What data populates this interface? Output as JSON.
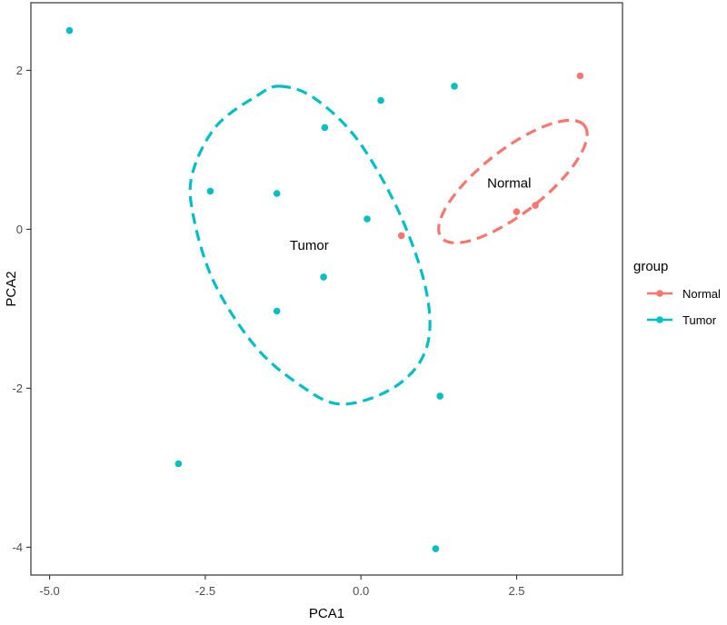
{
  "chart_data": {
    "type": "scatter",
    "title": "",
    "xlabel": "PCA1",
    "ylabel": "PCA2",
    "xlim": [
      -5.3,
      4.2
    ],
    "ylim": [
      -4.35,
      2.85
    ],
    "xticks": [
      -5.0,
      -2.5,
      0.0,
      2.5
    ],
    "xtick_labels": [
      "-5.0",
      "-2.5",
      "0.0",
      "2.5"
    ],
    "yticks": [
      -4,
      -2,
      0,
      2
    ],
    "ytick_labels": [
      "-4",
      "-2",
      "0",
      "2"
    ],
    "grid": false,
    "legend": {
      "title": "group",
      "placement": "right",
      "entries": [
        {
          "label": "Normal",
          "color": "#f8766d"
        },
        {
          "label": "Tumor",
          "color": "#00bfc4"
        }
      ]
    },
    "series": [
      {
        "name": "Normal",
        "color": "#f8766d",
        "points": [
          {
            "x": 0.65,
            "y": -0.08
          },
          {
            "x": 2.5,
            "y": 0.22
          },
          {
            "x": 2.8,
            "y": 0.3
          },
          {
            "x": 3.52,
            "y": 1.93
          }
        ],
        "ellipse": {
          "label": "Normal",
          "label_at": {
            "x": 2.38,
            "y": 0.58
          },
          "outline": [
            {
              "x": 1.18,
              "y": -0.33
            },
            {
              "x": 1.55,
              "y": -0.12
            },
            {
              "x": 2.12,
              "y": 0.32
            },
            {
              "x": 2.78,
              "y": 0.82
            },
            {
              "x": 3.28,
              "y": 1.22
            },
            {
              "x": 3.59,
              "y": 1.43
            },
            {
              "x": 3.73,
              "y": 1.23
            },
            {
              "x": 3.58,
              "y": 0.7
            },
            {
              "x": 3.1,
              "y": 0.38
            },
            {
              "x": 2.38,
              "y": 0.08
            },
            {
              "x": 1.55,
              "y": -0.22
            },
            {
              "x": 1.1,
              "y": -0.3
            },
            {
              "x": 1.13,
              "y": 0.15
            },
            {
              "x": 1.68,
              "y": 0.73
            },
            {
              "x": 2.35,
              "y": 1.23
            },
            {
              "x": 3.08,
              "y": 1.5
            },
            {
              "x": 3.5,
              "y": 1.5
            }
          ]
        }
      },
      {
        "name": "Tumor",
        "color": "#00bfc4",
        "points": [
          {
            "x": -4.68,
            "y": 2.5
          },
          {
            "x": -2.93,
            "y": -2.95
          },
          {
            "x": -2.42,
            "y": 0.48
          },
          {
            "x": -1.35,
            "y": 0.45
          },
          {
            "x": -1.35,
            "y": -1.03
          },
          {
            "x": -0.58,
            "y": 1.28
          },
          {
            "x": -0.6,
            "y": -0.6
          },
          {
            "x": 0.1,
            "y": 0.13
          },
          {
            "x": 0.32,
            "y": 1.62
          },
          {
            "x": 1.5,
            "y": 1.8
          },
          {
            "x": 1.27,
            "y": -2.1
          },
          {
            "x": 1.2,
            "y": -4.02
          }
        ],
        "ellipse": {
          "label": "Tumor",
          "label_at": {
            "x": -0.83,
            "y": -0.2
          },
          "outline": [
            {
              "x": -1.3,
              "y": 1.8
            },
            {
              "x": -0.75,
              "y": 1.65
            },
            {
              "x": -0.05,
              "y": 1.12
            },
            {
              "x": 0.62,
              "y": 0.2
            },
            {
              "x": 1.05,
              "y": -0.78
            },
            {
              "x": 1.05,
              "y": -1.5
            },
            {
              "x": 0.55,
              "y": -1.98
            },
            {
              "x": -0.33,
              "y": -2.2
            },
            {
              "x": -1.05,
              "y": -1.92
            },
            {
              "x": -1.72,
              "y": -1.45
            },
            {
              "x": -2.37,
              "y": -0.65
            },
            {
              "x": -2.7,
              "y": 0.2
            },
            {
              "x": -2.7,
              "y": 0.72
            },
            {
              "x": -2.32,
              "y": 1.3
            },
            {
              "x": -1.67,
              "y": 1.68
            }
          ]
        }
      }
    ]
  }
}
